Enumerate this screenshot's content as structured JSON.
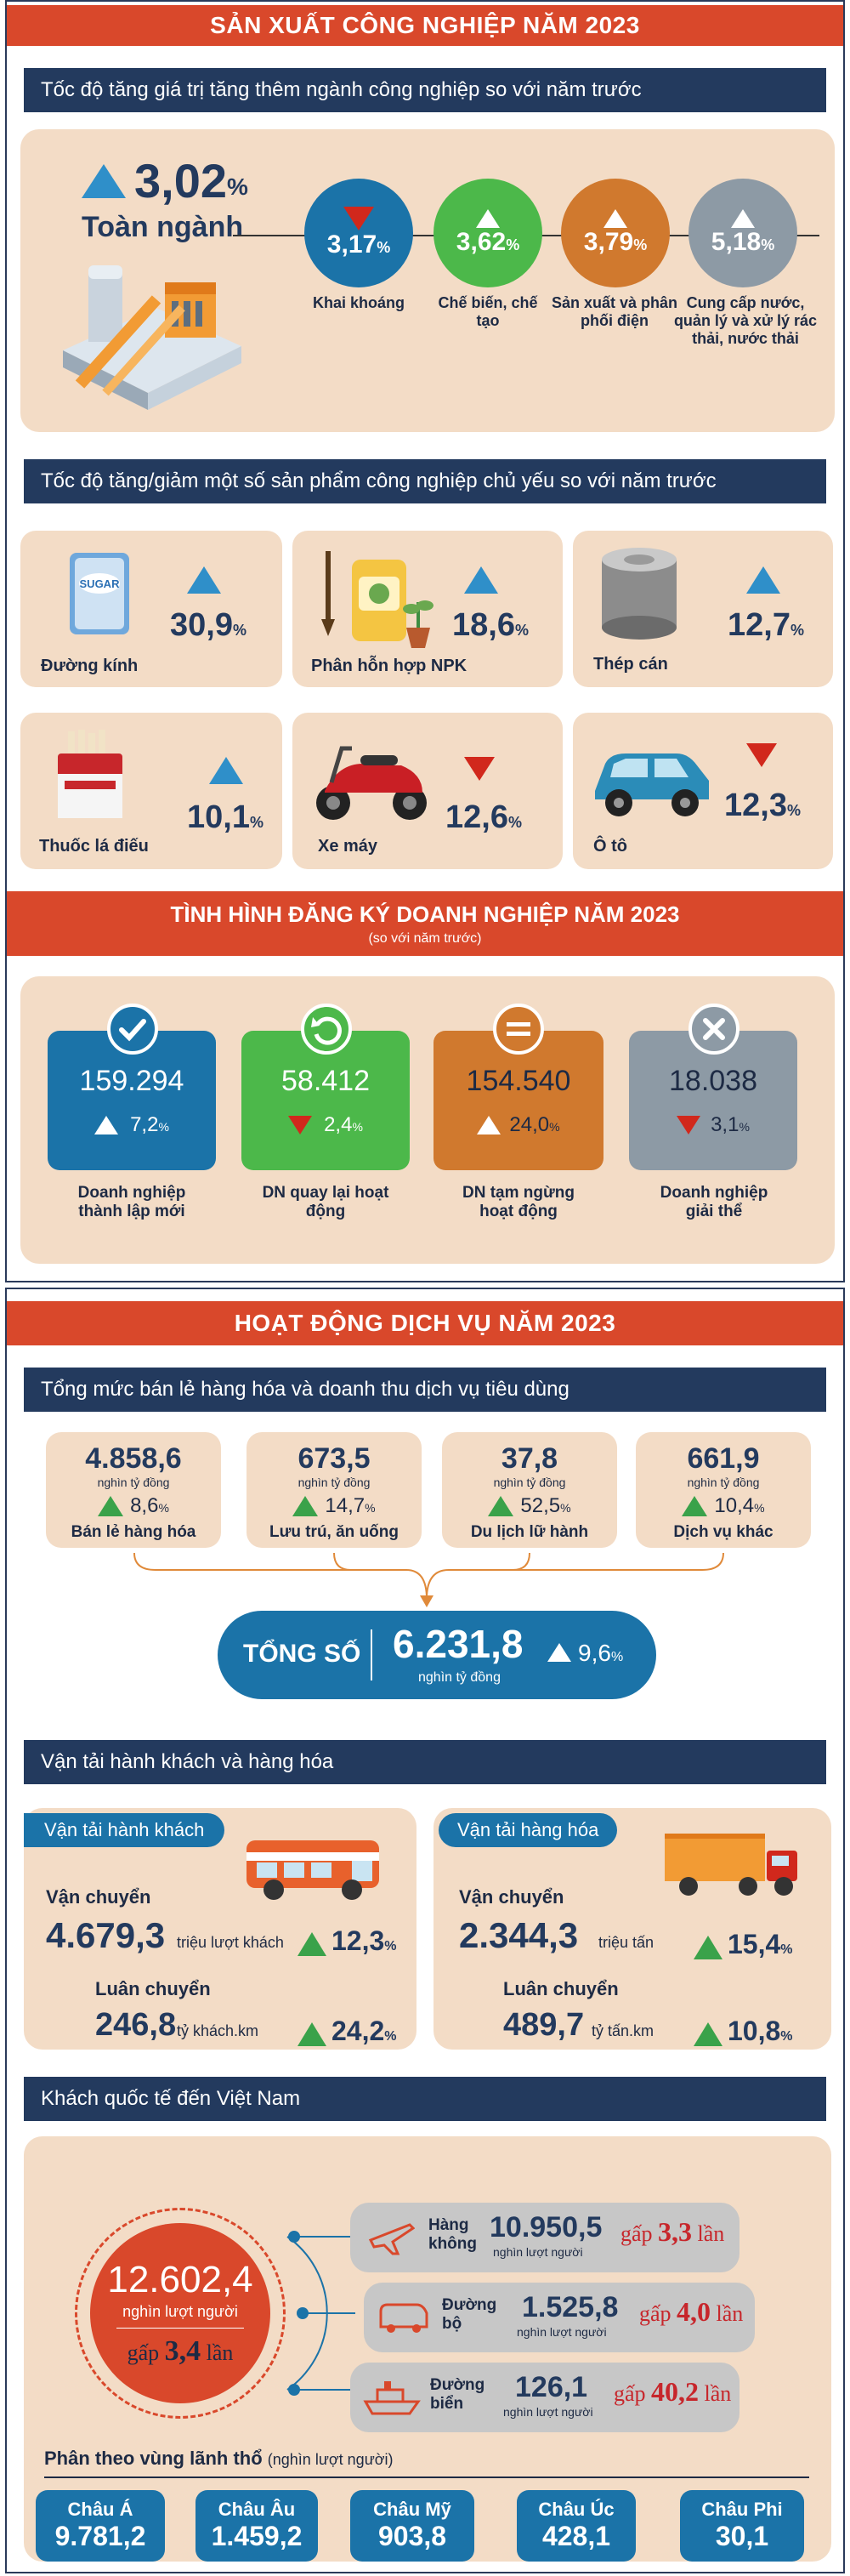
{
  "industry": {
    "title": "SẢN XUẤT CÔNG NGHIỆP NĂM 2023",
    "growth_header": "Tốc độ tăng giá trị tăng thêm ngành công nghiệp so với năm trước",
    "total": {
      "value": "3,02",
      "unit": "%",
      "label": "Toàn ngành",
      "direction": "up"
    },
    "sectors": [
      {
        "value": "3,17",
        "unit": "%",
        "label": "Khai khoáng",
        "direction": "down",
        "color": "#1b73a8"
      },
      {
        "value": "3,62",
        "unit": "%",
        "label": "Chế biến, chế tạo",
        "direction": "up",
        "color": "#4cb84a"
      },
      {
        "value": "3,79",
        "unit": "%",
        "label": "Sản xuất và phân phối điện",
        "direction": "up",
        "color": "#d0792e"
      },
      {
        "value": "5,18",
        "unit": "%",
        "label": "Cung cấp nước, quản lý và xử lý rác thải, nước thải",
        "direction": "up",
        "color": "#8d9aa5"
      }
    ],
    "products_header": "Tốc độ tăng/giảm một số sản phẩm công nghiệp chủ yếu so với năm trước",
    "products": [
      {
        "label": "Đường kính",
        "value": "30,9",
        "unit": "%",
        "direction": "up",
        "icon": "sugar-bag-icon"
      },
      {
        "label": "Phân hỗn hợp NPK",
        "value": "18,6",
        "unit": "%",
        "direction": "up",
        "icon": "fertilizer-bag-icon"
      },
      {
        "label": "Thép cán",
        "value": "12,7",
        "unit": "%",
        "direction": "up",
        "icon": "steel-roll-icon"
      },
      {
        "label": "Thuốc lá điếu",
        "value": "10,1",
        "unit": "%",
        "direction": "up",
        "icon": "cigarette-pack-icon"
      },
      {
        "label": "Xe máy",
        "value": "12,6",
        "unit": "%",
        "direction": "down",
        "icon": "scooter-icon"
      },
      {
        "label": "Ô tô",
        "value": "12,3",
        "unit": "%",
        "direction": "down",
        "icon": "car-icon"
      }
    ]
  },
  "business": {
    "title": "TÌNH HÌNH ĐĂNG KÝ DOANH NGHIỆP NĂM 2023",
    "subtitle": "(so với năm trước)",
    "items": [
      {
        "value": "159.294",
        "change": "7,2",
        "unit": "%",
        "direction": "up",
        "label": "Doanh nghiệp thành lập mới",
        "color": "#1b73a8",
        "icon": "check-icon"
      },
      {
        "value": "58.412",
        "change": "2,4",
        "unit": "%",
        "direction": "down",
        "label": "DN quay lại hoạt động",
        "color": "#4cb84a",
        "icon": "return-icon"
      },
      {
        "value": "154.540",
        "change": "24,0",
        "unit": "%",
        "direction": "up",
        "label": "DN tạm ngừng hoạt động",
        "color": "#d0792e",
        "icon": "pause-icon"
      },
      {
        "value": "18.038",
        "change": "3,1",
        "unit": "%",
        "direction": "down",
        "label": "Doanh nghiệp giải thể",
        "color": "#8d9aa5",
        "icon": "close-icon"
      }
    ]
  },
  "services": {
    "title": "HOẠT ĐỘNG DỊCH VỤ NĂM 2023",
    "retail_header": "Tổng mức bán lẻ hàng hóa và doanh thu dịch vụ tiêu dùng",
    "retail": [
      {
        "value": "4.858,6",
        "unit_text": "nghìn tỷ đồng",
        "change": "8,6",
        "pct": "%",
        "label": "Bán lẻ hàng hóa"
      },
      {
        "value": "673,5",
        "unit_text": "nghìn tỷ đồng",
        "change": "14,7",
        "pct": "%",
        "label": "Lưu trú, ăn uống"
      },
      {
        "value": "37,8",
        "unit_text": "nghìn tỷ đồng",
        "change": "52,5",
        "pct": "%",
        "label": "Du lịch lữ hành"
      },
      {
        "value": "661,9",
        "unit_text": "nghìn tỷ đồng",
        "change": "10,4",
        "pct": "%",
        "label": "Dịch vụ khác"
      }
    ],
    "total": {
      "label": "TỔNG SỐ",
      "value": "6.231,8",
      "unit_text": "nghìn tỷ đồng",
      "change": "9,6",
      "pct": "%"
    },
    "transport_header": "Vận tải hành khách và hàng hóa",
    "passenger": {
      "title": "Vận tải hành khách",
      "carry_label": "Vận chuyển",
      "carry_value": "4.679,3",
      "carry_unit": "triệu lượt khách",
      "carry_change": "12,3",
      "circ_label": "Luân chuyển",
      "circ_value": "246,8",
      "circ_unit": "tỷ khách.km",
      "circ_change": "24,2",
      "pct": "%"
    },
    "cargo": {
      "title": "Vận tải hàng hóa",
      "carry_label": "Vận chuyển",
      "carry_value": "2.344,3",
      "carry_unit": "triệu tấn",
      "carry_change": "15,4",
      "circ_label": "Luân chuyển",
      "circ_value": "489,7",
      "circ_unit": "tỷ tấn.km",
      "circ_change": "10,8",
      "pct": "%"
    },
    "visitors_header": "Khách quốc tế đến Việt Nam",
    "visitors_total": {
      "value": "12.602,4",
      "unit_text": "nghìn lượt người",
      "times_prefix": "gấp",
      "times": "3,4",
      "times_suffix": "lần"
    },
    "modes": [
      {
        "label": "Hàng không",
        "value": "10.950,5",
        "unit_text": "nghìn lượt người",
        "times_prefix": "gấp",
        "times": "3,3",
        "times_suffix": "lần",
        "icon": "airplane-icon"
      },
      {
        "label": "Đường bộ",
        "value": "1.525,8",
        "unit_text": "nghìn lượt người",
        "times_prefix": "gấp",
        "times": "4,0",
        "times_suffix": "lần",
        "icon": "van-icon"
      },
      {
        "label": "Đường biển",
        "value": "126,1",
        "unit_text": "nghìn lượt người",
        "times_prefix": "gấp",
        "times": "40,2",
        "times_suffix": "lần",
        "icon": "ship-icon"
      }
    ],
    "regions_label": "Phân theo vùng lãnh thổ",
    "regions_unit": "(nghìn lượt người)",
    "regions": [
      {
        "name": "Châu Á",
        "value": "9.781,2"
      },
      {
        "name": "Châu Âu",
        "value": "1.459,2"
      },
      {
        "name": "Châu Mỹ",
        "value": "903,8"
      },
      {
        "name": "Châu Úc",
        "value": "428,1"
      },
      {
        "name": "Châu Phi",
        "value": "30,1"
      }
    ]
  }
}
